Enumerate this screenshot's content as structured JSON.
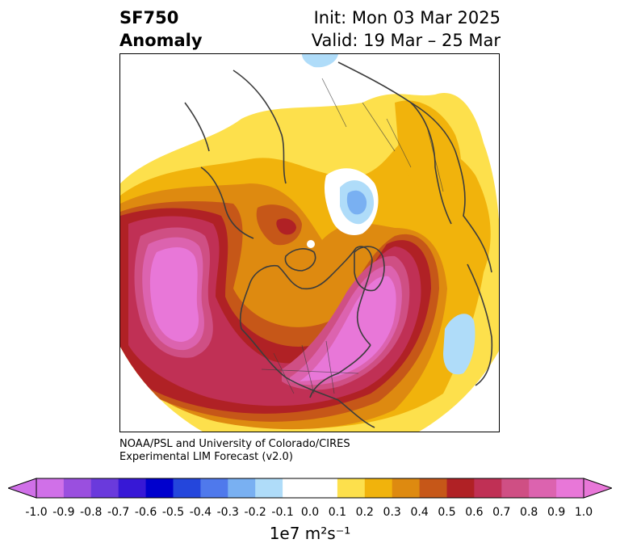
{
  "title": {
    "left_line1": "SF750",
    "left_line2": "Anomaly",
    "right_line1": "Init: Mon 03 Mar 2025",
    "right_line2": "Valid: 19 Mar – 25 Mar"
  },
  "credit": {
    "line1": "NOAA/PSL and University of Colorado/CIRES",
    "line2": "Experimental LIM Forecast (v2.0)"
  },
  "colorbar": {
    "unit": "1e7 m²s⁻¹",
    "ticks": [
      "-1.0",
      "-0.9",
      "-0.8",
      "-0.7",
      "-0.6",
      "-0.5",
      "-0.4",
      "-0.3",
      "-0.2",
      "-0.1",
      "0.0",
      "0.1",
      "0.2",
      "0.3",
      "0.4",
      "0.5",
      "0.6",
      "0.7",
      "0.8",
      "0.9",
      "1.0"
    ],
    "colors": [
      "#d070e8",
      "#9a4fdf",
      "#6a3adc",
      "#3718d6",
      "#0000cd",
      "#2446dc",
      "#4f79ec",
      "#79b0f2",
      "#afdcf9",
      "#ffffff",
      "#ffffff",
      "#fde04c",
      "#f1b30c",
      "#de8a10",
      "#c65718",
      "#b02125",
      "#c03055",
      "#cf4f84",
      "#dc63af",
      "#e877d8"
    ],
    "under_color": "#d070e8",
    "over_color": "#e877d8"
  },
  "map": {
    "projection": "north-polar-stereographic",
    "fields": [
      {
        "name": "pacific-positive-anomaly",
        "peak": 1.0
      },
      {
        "name": "atlantic-eastern-us-positive-anomaly",
        "peak": 1.0
      },
      {
        "name": "hudson-bay-anomaly",
        "peak": 0.5
      },
      {
        "name": "eurasia-negative-anomaly",
        "peak": -0.4
      },
      {
        "name": "africa-negative-anomaly",
        "peak": -0.2
      },
      {
        "name": "siberia-negative-anomaly",
        "peak": -0.2
      }
    ]
  }
}
